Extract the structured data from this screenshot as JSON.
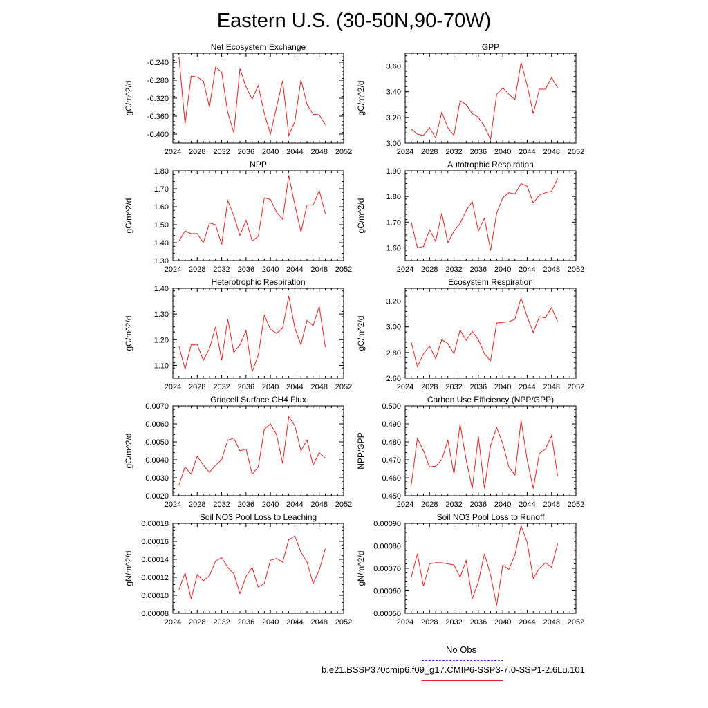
{
  "title": "Eastern U.S. (30-50N,90-70W)",
  "legend": [
    {
      "label": "No Obs",
      "color": "#3a3af0",
      "dash": "dashed"
    },
    {
      "label": "b.e21.BSSP370cmip6.f09_g17.CMIP6-SSP3-7.0-SSP1-2.6Lu.101",
      "color": "#e62020",
      "dash": "solid"
    }
  ],
  "chart_data": [
    {
      "type": "line",
      "title": "Net Ecosystem Exchange",
      "ylabel": "gC/m^2/d",
      "xlim": [
        2024,
        2052
      ],
      "ylim": [
        -0.42,
        -0.22
      ],
      "xticks": [
        "2024",
        "2028",
        "2032",
        "2036",
        "2040",
        "2044",
        "2048",
        "2052"
      ],
      "yticks": [
        "-0.400",
        "-0.360",
        "-0.320",
        "-0.280",
        "-0.240"
      ],
      "ytick_values": [
        -0.4,
        -0.36,
        -0.32,
        -0.28,
        -0.24
      ],
      "x": [
        2025,
        2026,
        2027,
        2028,
        2029,
        2030,
        2031,
        2032,
        2033,
        2034,
        2035,
        2036,
        2037,
        2038,
        2039,
        2040,
        2041,
        2042,
        2043,
        2044,
        2045,
        2046,
        2047,
        2048,
        2049
      ],
      "series": [
        {
          "values": [
            -0.228,
            -0.378,
            -0.271,
            -0.273,
            -0.282,
            -0.34,
            -0.251,
            -0.262,
            -0.352,
            -0.397,
            -0.254,
            -0.295,
            -0.322,
            -0.292,
            -0.354,
            -0.4,
            -0.34,
            -0.281,
            -0.403,
            -0.372,
            -0.279,
            -0.334,
            -0.356,
            -0.357,
            -0.379
          ],
          "color": "#e62020"
        }
      ]
    },
    {
      "type": "line",
      "title": "GPP",
      "ylabel": "gC/m^2/d",
      "xlim": [
        2024,
        2052
      ],
      "ylim": [
        3.0,
        3.7
      ],
      "xticks": [
        "2024",
        "2028",
        "2032",
        "2036",
        "2040",
        "2044",
        "2048",
        "2052"
      ],
      "yticks": [
        "3.00",
        "3.20",
        "3.40",
        "3.60"
      ],
      "ytick_values": [
        3.0,
        3.2,
        3.4,
        3.6
      ],
      "x": [
        2025,
        2026,
        2027,
        2028,
        2029,
        2030,
        2031,
        2032,
        2033,
        2034,
        2035,
        2036,
        2037,
        2038,
        2039,
        2040,
        2041,
        2042,
        2043,
        2044,
        2045,
        2046,
        2047,
        2048,
        2049
      ],
      "series": [
        {
          "values": [
            3.11,
            3.07,
            3.06,
            3.12,
            3.04,
            3.24,
            3.12,
            3.06,
            3.33,
            3.3,
            3.23,
            3.2,
            3.13,
            3.03,
            3.38,
            3.43,
            3.38,
            3.34,
            3.63,
            3.45,
            3.23,
            3.42,
            3.42,
            3.51,
            3.43
          ],
          "color": "#e62020"
        }
      ]
    },
    {
      "type": "line",
      "title": "NPP",
      "ylabel": "gC/m^2/d",
      "xlim": [
        2024,
        2052
      ],
      "ylim": [
        1.3,
        1.8
      ],
      "xticks": [
        "2024",
        "2028",
        "2032",
        "2036",
        "2040",
        "2044",
        "2048",
        "2052"
      ],
      "yticks": [
        "1.30",
        "1.40",
        "1.50",
        "1.60",
        "1.70",
        "1.80"
      ],
      "ytick_values": [
        1.3,
        1.4,
        1.5,
        1.6,
        1.7,
        1.8
      ],
      "x": [
        2025,
        2026,
        2027,
        2028,
        2029,
        2030,
        2031,
        2032,
        2033,
        2034,
        2035,
        2036,
        2037,
        2038,
        2039,
        2040,
        2041,
        2042,
        2043,
        2044,
        2045,
        2046,
        2047,
        2048,
        2049
      ],
      "series": [
        {
          "values": [
            1.41,
            1.465,
            1.45,
            1.45,
            1.4,
            1.51,
            1.5,
            1.39,
            1.635,
            1.55,
            1.44,
            1.525,
            1.41,
            1.435,
            1.65,
            1.64,
            1.57,
            1.53,
            1.775,
            1.61,
            1.46,
            1.61,
            1.61,
            1.69,
            1.56
          ],
          "color": "#e62020"
        }
      ]
    },
    {
      "type": "line",
      "title": "Autotrophic Respiration",
      "ylabel": "gC/m^2/d",
      "xlim": [
        2024,
        2052
      ],
      "ylim": [
        1.55,
        1.9
      ],
      "xticks": [
        "2024",
        "2028",
        "2032",
        "2036",
        "2040",
        "2044",
        "2048",
        "2052"
      ],
      "yticks": [
        "1.60",
        "1.70",
        "1.80",
        "1.90"
      ],
      "ytick_values": [
        1.6,
        1.7,
        1.8,
        1.9
      ],
      "x": [
        2025,
        2026,
        2027,
        2028,
        2029,
        2030,
        2031,
        2032,
        2033,
        2034,
        2035,
        2036,
        2037,
        2038,
        2039,
        2040,
        2041,
        2042,
        2043,
        2044,
        2045,
        2046,
        2047,
        2048,
        2049
      ],
      "series": [
        {
          "values": [
            1.7,
            1.6,
            1.605,
            1.67,
            1.625,
            1.735,
            1.62,
            1.665,
            1.695,
            1.745,
            1.78,
            1.665,
            1.715,
            1.59,
            1.735,
            1.795,
            1.815,
            1.81,
            1.85,
            1.84,
            1.775,
            1.805,
            1.815,
            1.82,
            1.87
          ],
          "color": "#e62020"
        }
      ]
    },
    {
      "type": "line",
      "title": "Heterotrophic Respiration",
      "ylabel": "gC/m^2/d",
      "xlim": [
        2024,
        2052
      ],
      "ylim": [
        1.05,
        1.4
      ],
      "xticks": [
        "2024",
        "2028",
        "2032",
        "2036",
        "2040",
        "2044",
        "2048",
        "2052"
      ],
      "yticks": [
        "1.10",
        "1.20",
        "1.30",
        "1.40"
      ],
      "ytick_values": [
        1.1,
        1.2,
        1.3,
        1.4
      ],
      "x": [
        2025,
        2026,
        2027,
        2028,
        2029,
        2030,
        2031,
        2032,
        2033,
        2034,
        2035,
        2036,
        2037,
        2038,
        2039,
        2040,
        2041,
        2042,
        2043,
        2044,
        2045,
        2046,
        2047,
        2048,
        2049
      ],
      "series": [
        {
          "values": [
            1.175,
            1.085,
            1.18,
            1.18,
            1.12,
            1.165,
            1.25,
            1.12,
            1.28,
            1.15,
            1.18,
            1.235,
            1.075,
            1.14,
            1.295,
            1.24,
            1.225,
            1.245,
            1.37,
            1.245,
            1.18,
            1.275,
            1.255,
            1.33,
            1.17
          ],
          "color": "#e62020"
        }
      ]
    },
    {
      "type": "line",
      "title": "Ecosystem Respiration",
      "ylabel": "gC/m^2/d",
      "xlim": [
        2024,
        2052
      ],
      "ylim": [
        2.6,
        3.3
      ],
      "xticks": [
        "2024",
        "2028",
        "2032",
        "2036",
        "2040",
        "2044",
        "2048",
        "2052"
      ],
      "yticks": [
        "2.60",
        "2.80",
        "3.00",
        "3.20"
      ],
      "ytick_values": [
        2.6,
        2.8,
        3.0,
        3.2
      ],
      "x": [
        2025,
        2026,
        2027,
        2028,
        2029,
        2030,
        2031,
        2032,
        2033,
        2034,
        2035,
        2036,
        2037,
        2038,
        2039,
        2040,
        2041,
        2042,
        2043,
        2044,
        2045,
        2046,
        2047,
        2048,
        2049
      ],
      "series": [
        {
          "values": [
            2.88,
            2.69,
            2.79,
            2.85,
            2.75,
            2.9,
            2.87,
            2.79,
            2.975,
            2.895,
            2.965,
            2.9,
            2.79,
            2.735,
            3.03,
            3.035,
            3.04,
            3.06,
            3.225,
            3.08,
            2.955,
            3.08,
            3.07,
            3.15,
            3.04
          ],
          "color": "#e62020"
        }
      ]
    },
    {
      "type": "line",
      "title": "Gridcell Surface CH4 Flux",
      "ylabel": "gC/m^2/d",
      "xlim": [
        2024,
        2052
      ],
      "ylim": [
        0.002,
        0.007
      ],
      "xticks": [
        "2024",
        "2028",
        "2032",
        "2036",
        "2040",
        "2044",
        "2048",
        "2052"
      ],
      "yticks": [
        "0.0020",
        "0.0030",
        "0.0040",
        "0.0050",
        "0.0060",
        "0.0070"
      ],
      "ytick_values": [
        0.002,
        0.003,
        0.004,
        0.005,
        0.006,
        0.007
      ],
      "x": [
        2025,
        2026,
        2027,
        2028,
        2029,
        2030,
        2031,
        2032,
        2033,
        2034,
        2035,
        2036,
        2037,
        2038,
        2039,
        2040,
        2041,
        2042,
        2043,
        2044,
        2045,
        2046,
        2047,
        2048,
        2049
      ],
      "series": [
        {
          "values": [
            0.0026,
            0.0036,
            0.0032,
            0.0042,
            0.0037,
            0.0033,
            0.0037,
            0.004,
            0.0051,
            0.0052,
            0.0045,
            0.0046,
            0.0032,
            0.0036,
            0.0057,
            0.006,
            0.0054,
            0.0038,
            0.0064,
            0.0059,
            0.0045,
            0.0051,
            0.0037,
            0.0044,
            0.0041
          ],
          "color": "#e62020"
        }
      ]
    },
    {
      "type": "line",
      "title": "Carbon Use Efficiency (NPP/GPP)",
      "ylabel": "NPP/GPP",
      "xlim": [
        2024,
        2052
      ],
      "ylim": [
        0.45,
        0.5
      ],
      "xticks": [
        "2024",
        "2028",
        "2032",
        "2036",
        "2040",
        "2044",
        "2048",
        "2052"
      ],
      "yticks": [
        "0.450",
        "0.460",
        "0.470",
        "0.480",
        "0.490",
        "0.500"
      ],
      "ytick_values": [
        0.45,
        0.46,
        0.47,
        0.48,
        0.49,
        0.5
      ],
      "x": [
        2025,
        2026,
        2027,
        2028,
        2029,
        2030,
        2031,
        2032,
        2033,
        2034,
        2035,
        2036,
        2037,
        2038,
        2039,
        2040,
        2041,
        2042,
        2043,
        2044,
        2045,
        2046,
        2047,
        2048,
        2049
      ],
      "series": [
        {
          "values": [
            0.456,
            0.482,
            0.475,
            0.466,
            0.4665,
            0.47,
            0.481,
            0.462,
            0.49,
            0.47,
            0.454,
            0.483,
            0.454,
            0.478,
            0.488,
            0.479,
            0.466,
            0.4615,
            0.492,
            0.47,
            0.454,
            0.4735,
            0.476,
            0.4835,
            0.461
          ],
          "color": "#e62020"
        }
      ]
    },
    {
      "type": "line",
      "title": "Soil NO3 Pool Loss to Leaching",
      "ylabel": "gN/m^2/d",
      "xlim": [
        2024,
        2052
      ],
      "ylim": [
        8e-05,
        0.00018
      ],
      "xticks": [
        "2024",
        "2028",
        "2032",
        "2036",
        "2040",
        "2044",
        "2048",
        "2052"
      ],
      "yticks": [
        "0.00008",
        "0.00010",
        "0.00012",
        "0.00014",
        "0.00016",
        "0.00018"
      ],
      "ytick_values": [
        8e-05,
        0.0001,
        0.00012,
        0.00014,
        0.00016,
        0.00018
      ],
      "x": [
        2025,
        2026,
        2027,
        2028,
        2029,
        2030,
        2031,
        2032,
        2033,
        2034,
        2035,
        2036,
        2037,
        2038,
        2039,
        2040,
        2041,
        2042,
        2043,
        2044,
        2045,
        2046,
        2047,
        2048,
        2049
      ],
      "series": [
        {
          "values": [
            0.000106,
            0.000125,
            9.6e-05,
            0.000123,
            0.000116,
            0.000122,
            0.000138,
            0.000142,
            0.000131,
            0.000124,
            0.000102,
            0.000121,
            0.000131,
            0.000109,
            0.000113,
            0.000139,
            0.000141,
            0.000137,
            0.000162,
            0.000166,
            0.000148,
            0.000137,
            0.000113,
            0.000128,
            0.000152
          ],
          "color": "#e62020"
        }
      ]
    },
    {
      "type": "line",
      "title": "Soil NO3 Pool Loss to Runoff",
      "ylabel": "gN/m^2/d",
      "xlim": [
        2024,
        2052
      ],
      "ylim": [
        0.0005,
        0.0009
      ],
      "xticks": [
        "2024",
        "2028",
        "2032",
        "2036",
        "2040",
        "2044",
        "2048",
        "2052"
      ],
      "yticks": [
        "0.00050",
        "0.00060",
        "0.00070",
        "0.00080",
        "0.00090"
      ],
      "ytick_values": [
        0.0005,
        0.0006,
        0.0007,
        0.0008,
        0.0009
      ],
      "x": [
        2025,
        2026,
        2027,
        2028,
        2029,
        2030,
        2031,
        2032,
        2033,
        2034,
        2035,
        2036,
        2037,
        2038,
        2039,
        2040,
        2041,
        2042,
        2043,
        2044,
        2045,
        2046,
        2047,
        2048,
        2049
      ],
      "series": [
        {
          "values": [
            0.00066,
            0.000765,
            0.00062,
            0.00072,
            0.000725,
            0.000725,
            0.00072,
            0.000715,
            0.00066,
            0.000735,
            0.000565,
            0.00064,
            0.000765,
            0.00067,
            0.000535,
            0.000715,
            0.000695,
            0.00076,
            0.00089,
            0.000815,
            0.000655,
            0.0007,
            0.000725,
            0.000705,
            0.00081
          ],
          "color": "#e62020"
        }
      ]
    }
  ]
}
